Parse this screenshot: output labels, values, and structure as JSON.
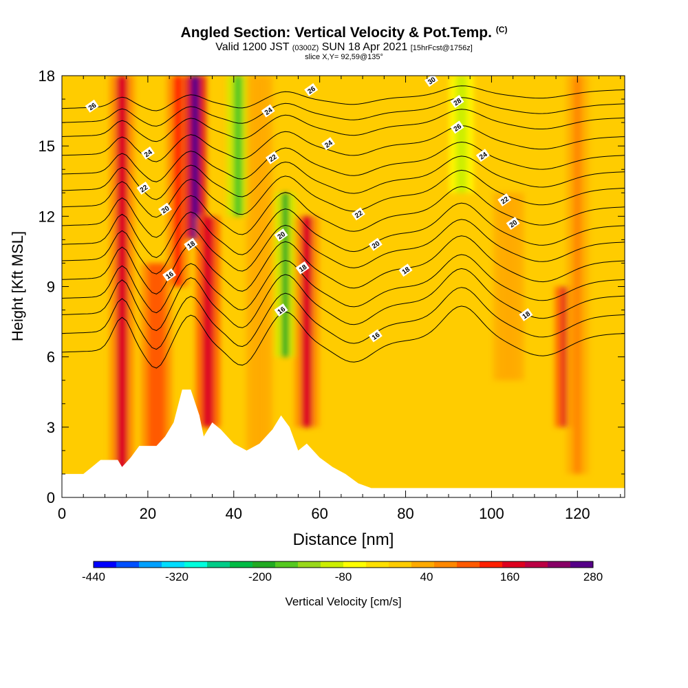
{
  "chart_data": {
    "type": "heatmap",
    "title": "Angled Section: Vertical Velocity & Pot.Temp.",
    "title_tag": "(C)",
    "subtitle": {
      "main_a": "Valid 1200 JST",
      "zulu": "(0300Z)",
      "main_b": "SUN 18 Apr 2021",
      "forecast": "[15hrFcst@1756z]"
    },
    "slice": "slice X,Y= 92,59@135°",
    "xlabel": "Distance [nm]",
    "ylabel": "Height [Kft MSL]",
    "xlim": [
      0,
      131
    ],
    "ylim": [
      0,
      18
    ],
    "x_ticks": [
      "0",
      "20",
      "40",
      "60",
      "80",
      "100",
      "120"
    ],
    "y_ticks": [
      "0",
      "3",
      "6",
      "9",
      "12",
      "15",
      "18"
    ],
    "colorbar": {
      "label": "Vertical Velocity [cm/s]",
      "tick_labels": [
        "-440",
        "-320",
        "-200",
        "-80",
        "40",
        "160",
        "280"
      ],
      "tick_values": [
        -440,
        -320,
        -200,
        -80,
        40,
        160,
        280
      ],
      "min": -440,
      "max": 280,
      "colors": [
        "#0000ff",
        "#0050ff",
        "#00a0ff",
        "#00ddff",
        "#00ffdd",
        "#00cc88",
        "#00bb44",
        "#22aa22",
        "#55c820",
        "#99d81a",
        "#ccee00",
        "#ffff00",
        "#ffe000",
        "#ffcc00",
        "#ffaa00",
        "#ff8800",
        "#ff5a00",
        "#ff2000",
        "#dd0020",
        "#bb0044",
        "#880066",
        "#550088"
      ]
    },
    "velocity_columns": [
      {
        "x": 14,
        "w": 2.6,
        "ymin": 1,
        "ymax": 18,
        "v": 150
      },
      {
        "x": 22,
        "w": 4.0,
        "ymin": 2,
        "ymax": 10,
        "v": 110
      },
      {
        "x": 27,
        "w": 2.0,
        "ymin": 9,
        "ymax": 18,
        "v": 130
      },
      {
        "x": 31,
        "w": 2.0,
        "ymin": 11,
        "ymax": 18,
        "v": 280
      },
      {
        "x": 34,
        "w": 2.5,
        "ymin": 3,
        "ymax": 12,
        "v": 170
      },
      {
        "x": 41,
        "w": 2.0,
        "ymin": 12,
        "ymax": 18,
        "v": -150
      },
      {
        "x": 46,
        "w": 3.0,
        "ymin": 2,
        "ymax": 18,
        "v": 40
      },
      {
        "x": 52,
        "w": 1.6,
        "ymin": 6,
        "ymax": 13,
        "v": -190
      },
      {
        "x": 57,
        "w": 2.5,
        "ymin": 3,
        "ymax": 12,
        "v": 150
      },
      {
        "x": 93,
        "w": 2.5,
        "ymin": 13,
        "ymax": 18,
        "v": -110
      },
      {
        "x": 104,
        "w": 4.0,
        "ymin": 5,
        "ymax": 13,
        "v": 50
      },
      {
        "x": 117,
        "w": 1.3,
        "ymin": 3,
        "ymax": 9,
        "v": 170
      },
      {
        "x": 120,
        "w": 2.0,
        "ymin": 1,
        "ymax": 18,
        "v": 60
      }
    ],
    "terrain_kft": [
      {
        "x": 0,
        "h": 1.0
      },
      {
        "x": 5,
        "h": 1.0
      },
      {
        "x": 7,
        "h": 1.3
      },
      {
        "x": 9,
        "h": 1.6
      },
      {
        "x": 13,
        "h": 1.6
      },
      {
        "x": 14,
        "h": 1.3
      },
      {
        "x": 16,
        "h": 1.7
      },
      {
        "x": 18,
        "h": 2.2
      },
      {
        "x": 22,
        "h": 2.2
      },
      {
        "x": 24,
        "h": 2.6
      },
      {
        "x": 26,
        "h": 3.2
      },
      {
        "x": 28,
        "h": 4.6
      },
      {
        "x": 30,
        "h": 4.6
      },
      {
        "x": 32,
        "h": 3.5
      },
      {
        "x": 33,
        "h": 2.6
      },
      {
        "x": 35,
        "h": 3.2
      },
      {
        "x": 37,
        "h": 2.9
      },
      {
        "x": 40,
        "h": 2.3
      },
      {
        "x": 43,
        "h": 2.0
      },
      {
        "x": 46,
        "h": 2.3
      },
      {
        "x": 49,
        "h": 2.9
      },
      {
        "x": 51,
        "h": 3.5
      },
      {
        "x": 53,
        "h": 3.0
      },
      {
        "x": 55,
        "h": 2.0
      },
      {
        "x": 57,
        "h": 2.3
      },
      {
        "x": 60,
        "h": 1.7
      },
      {
        "x": 63,
        "h": 1.3
      },
      {
        "x": 66,
        "h": 1.0
      },
      {
        "x": 69,
        "h": 0.6
      },
      {
        "x": 72,
        "h": 0.4
      },
      {
        "x": 100,
        "h": 0.4
      },
      {
        "x": 131,
        "h": 0.4
      }
    ],
    "isentropes": [
      {
        "base": 16.6,
        "bump": 0.4
      },
      {
        "base": 16.0,
        "bump": 0.5
      },
      {
        "base": 15.4,
        "bump": 0.6
      },
      {
        "base": 14.6,
        "bump": 0.7
      },
      {
        "base": 13.8,
        "bump": 0.8
      },
      {
        "base": 13.1,
        "bump": 0.9
      },
      {
        "base": 12.4,
        "bump": 1.0
      },
      {
        "base": 11.6,
        "bump": 1.1
      },
      {
        "base": 10.8,
        "bump": 1.2
      },
      {
        "base": 10.1,
        "bump": 1.2
      },
      {
        "base": 9.3,
        "bump": 1.3
      },
      {
        "base": 8.5,
        "bump": 1.3
      },
      {
        "base": 7.8,
        "bump": 1.4
      },
      {
        "base": 7.0,
        "bump": 1.4
      },
      {
        "base": 6.2,
        "bump": 1.4
      }
    ],
    "contour_labels": [
      {
        "text": "26",
        "x": 7,
        "y": 16.7
      },
      {
        "text": "24",
        "x": 20,
        "y": 14.7
      },
      {
        "text": "22",
        "x": 19,
        "y": 13.2
      },
      {
        "text": "20",
        "x": 24,
        "y": 12.3
      },
      {
        "text": "18",
        "x": 30,
        "y": 10.8
      },
      {
        "text": "16",
        "x": 25,
        "y": 9.5
      },
      {
        "text": "24",
        "x": 48,
        "y": 16.5
      },
      {
        "text": "22",
        "x": 49,
        "y": 14.5
      },
      {
        "text": "20",
        "x": 51,
        "y": 11.2
      },
      {
        "text": "16",
        "x": 51,
        "y": 8.0
      },
      {
        "text": "18",
        "x": 56,
        "y": 9.8
      },
      {
        "text": "26",
        "x": 58,
        "y": 17.4
      },
      {
        "text": "24",
        "x": 62,
        "y": 15.1
      },
      {
        "text": "22",
        "x": 69,
        "y": 12.1
      },
      {
        "text": "20",
        "x": 73,
        "y": 10.8
      },
      {
        "text": "18",
        "x": 80,
        "y": 9.7
      },
      {
        "text": "16",
        "x": 73,
        "y": 6.9
      },
      {
        "text": "30",
        "x": 86,
        "y": 17.8
      },
      {
        "text": "28",
        "x": 92,
        "y": 16.9
      },
      {
        "text": "26",
        "x": 92,
        "y": 15.8
      },
      {
        "text": "24",
        "x": 98,
        "y": 14.6
      },
      {
        "text": "22",
        "x": 103,
        "y": 12.7
      },
      {
        "text": "20",
        "x": 105,
        "y": 11.7
      },
      {
        "text": "18",
        "x": 108,
        "y": 7.8
      }
    ]
  }
}
